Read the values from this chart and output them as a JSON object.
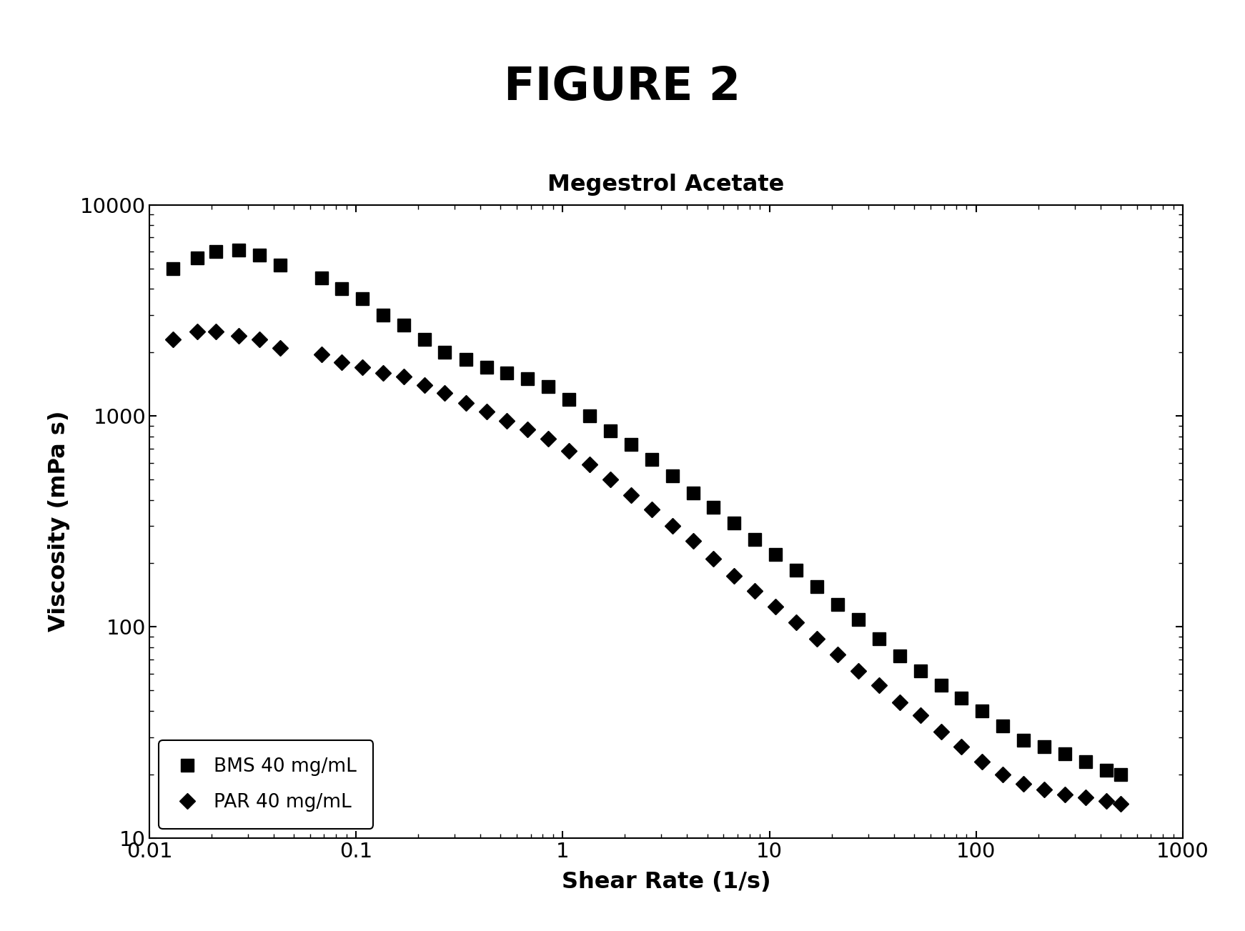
{
  "title": "FIGURE 2",
  "subtitle": "Megestrol Acetate",
  "xlabel": "Shear Rate (1/s)",
  "ylabel": "Viscosity (mPa s)",
  "background_color": "#ffffff",
  "series": [
    {
      "label": "BMS 40 mg/mL",
      "marker": "s",
      "color": "#000000",
      "markersize": 13,
      "x": [
        0.013,
        0.017,
        0.021,
        0.027,
        0.034,
        0.043,
        0.068,
        0.085,
        0.107,
        0.135,
        0.17,
        0.214,
        0.269,
        0.339,
        0.427,
        0.537,
        0.676,
        0.851,
        1.07,
        1.35,
        1.7,
        2.14,
        2.69,
        3.39,
        4.27,
        5.37,
        6.76,
        8.51,
        10.7,
        13.5,
        17.0,
        21.4,
        26.9,
        33.9,
        42.7,
        53.7,
        67.6,
        85.1,
        107,
        135,
        170,
        214,
        269,
        339,
        427,
        500
      ],
      "y": [
        5000,
        5600,
        6000,
        6100,
        5800,
        5200,
        4500,
        4000,
        3600,
        3000,
        2700,
        2300,
        2000,
        1850,
        1700,
        1600,
        1500,
        1380,
        1200,
        1000,
        850,
        730,
        620,
        520,
        430,
        370,
        310,
        260,
        220,
        185,
        155,
        128,
        108,
        88,
        73,
        62,
        53,
        46,
        40,
        34,
        29,
        27,
        25,
        23,
        21,
        20
      ]
    },
    {
      "label": "PAR 40 mg/mL",
      "marker": "D",
      "color": "#000000",
      "markersize": 11,
      "x": [
        0.013,
        0.017,
        0.021,
        0.027,
        0.034,
        0.043,
        0.068,
        0.085,
        0.107,
        0.135,
        0.17,
        0.214,
        0.269,
        0.339,
        0.427,
        0.537,
        0.676,
        0.851,
        1.07,
        1.35,
        1.7,
        2.14,
        2.69,
        3.39,
        4.27,
        5.37,
        6.76,
        8.51,
        10.7,
        13.5,
        17.0,
        21.4,
        26.9,
        33.9,
        42.7,
        53.7,
        67.6,
        85.1,
        107,
        135,
        170,
        214,
        269,
        339,
        427,
        500
      ],
      "y": [
        2300,
        2500,
        2500,
        2400,
        2300,
        2100,
        1950,
        1800,
        1700,
        1600,
        1530,
        1400,
        1280,
        1150,
        1050,
        950,
        860,
        780,
        680,
        590,
        500,
        420,
        360,
        300,
        255,
        210,
        175,
        148,
        125,
        105,
        88,
        74,
        62,
        53,
        44,
        38,
        32,
        27,
        23,
        20,
        18,
        17,
        16,
        15.5,
        15,
        14.5
      ]
    }
  ]
}
